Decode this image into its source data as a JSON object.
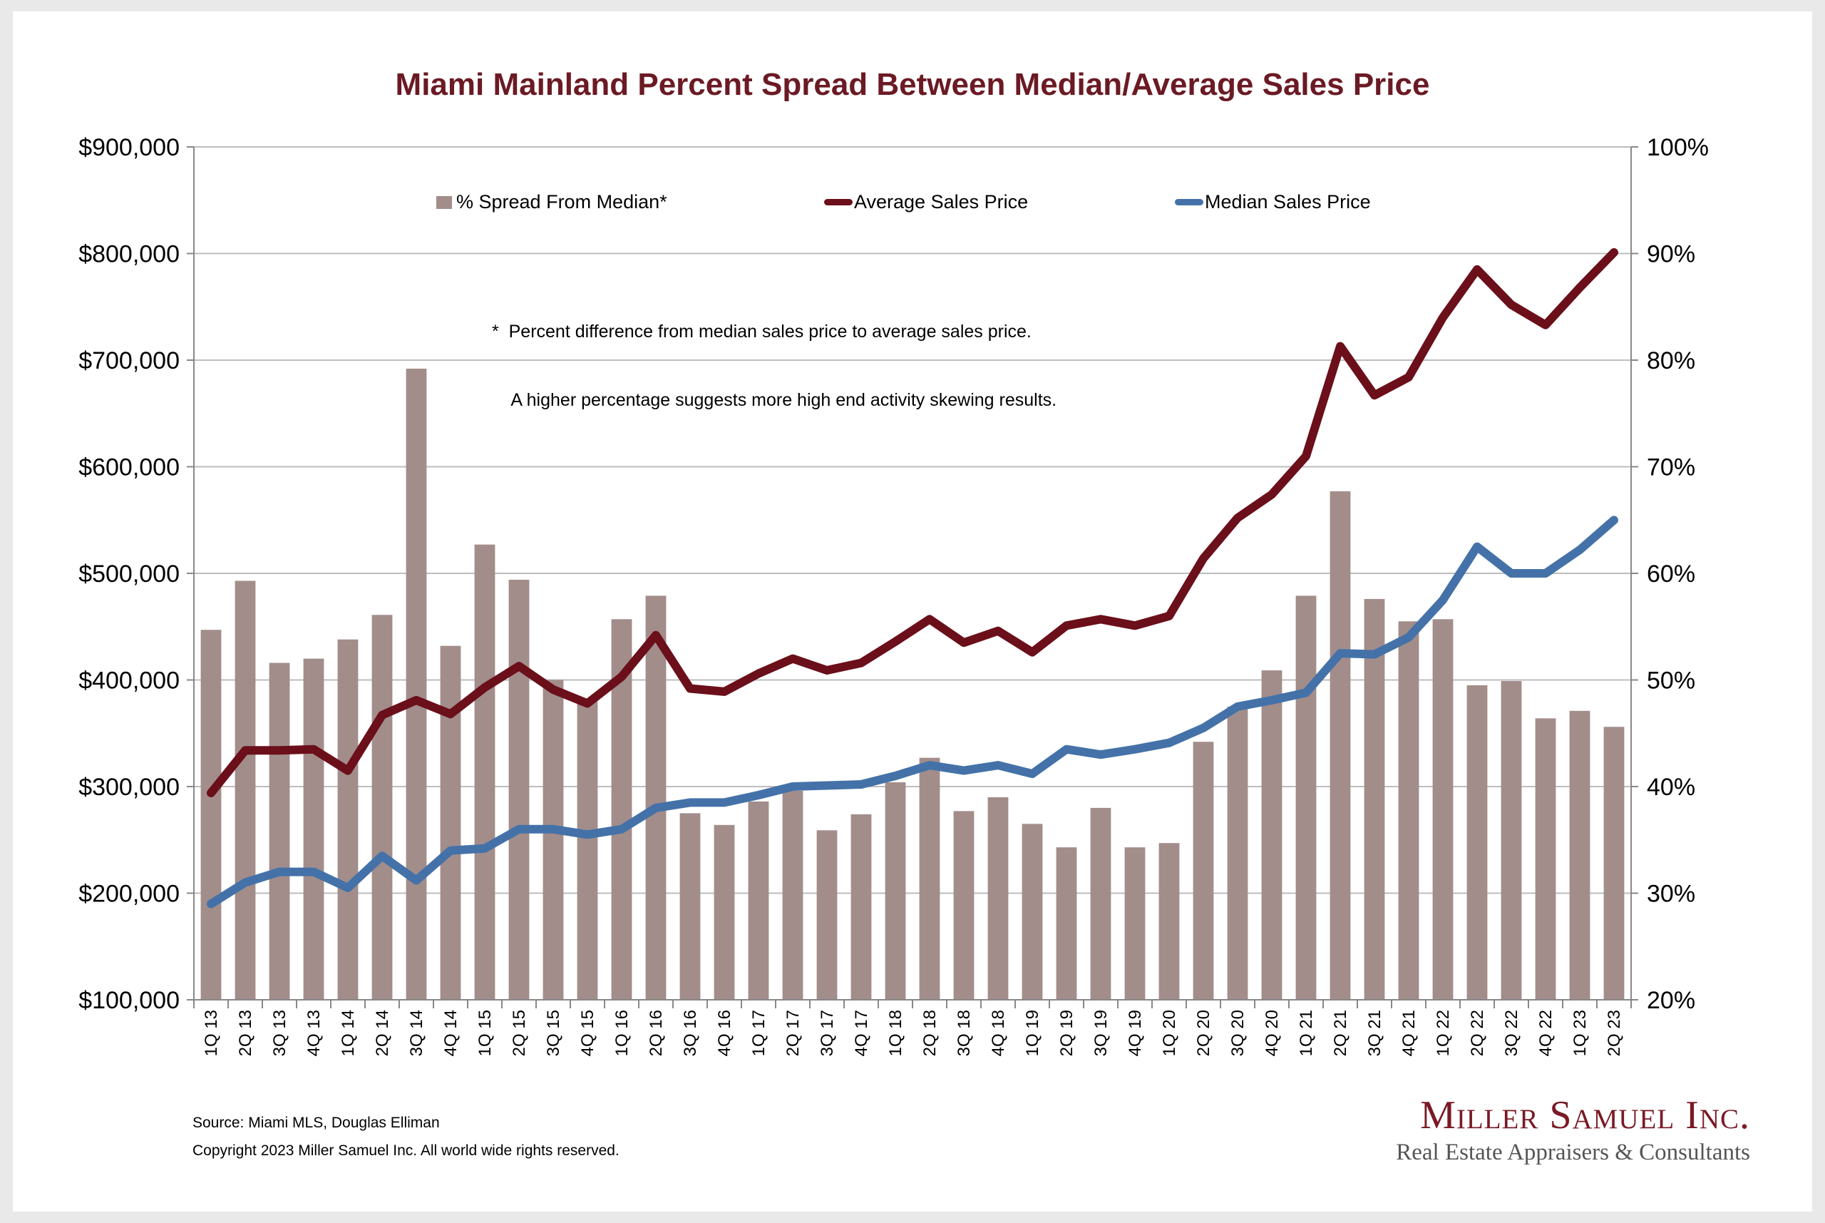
{
  "chart_data": {
    "type": "bar+line",
    "title": "Miami Mainland Percent Spread Between Median/Average Sales Price",
    "categories": [
      "1Q 13",
      "2Q 13",
      "3Q 13",
      "4Q 13",
      "1Q 14",
      "2Q 14",
      "3Q 14",
      "4Q 14",
      "1Q 15",
      "2Q 15",
      "3Q 15",
      "4Q 15",
      "1Q 16",
      "2Q 16",
      "3Q 16",
      "4Q 16",
      "1Q 17",
      "2Q 17",
      "3Q 17",
      "4Q 17",
      "1Q 18",
      "2Q 18",
      "3Q 18",
      "4Q 18",
      "1Q 19",
      "2Q 19",
      "3Q 19",
      "4Q 19",
      "1Q 20",
      "2Q 20",
      "3Q 20",
      "4Q 20",
      "1Q 21",
      "2Q 21",
      "3Q 21",
      "4Q 21",
      "1Q 22",
      "2Q 22",
      "3Q 22",
      "4Q 22",
      "1Q 23",
      "2Q 23"
    ],
    "series": [
      {
        "name": "% Spread From Median*",
        "kind": "bar",
        "axis": "right",
        "color": "#a28d8b",
        "values": [
          54.7,
          59.3,
          51.6,
          52.0,
          53.8,
          56.1,
          79.2,
          53.2,
          62.7,
          59.4,
          50.0,
          48.0,
          55.7,
          57.9,
          37.5,
          36.4,
          38.6,
          39.6,
          35.9,
          37.4,
          40.4,
          42.7,
          37.7,
          39.0,
          36.5,
          34.3,
          38.0,
          34.3,
          34.7,
          44.2,
          47.5,
          50.9,
          57.9,
          67.7,
          57.6,
          55.5,
          55.7,
          49.5,
          49.9,
          46.4,
          47.1,
          45.6
        ]
      },
      {
        "name": "Average Sales Price",
        "kind": "line",
        "axis": "left",
        "color": "#6b0f1a",
        "values": [
          294000,
          334000,
          334000,
          335000,
          315000,
          367000,
          381000,
          368000,
          393000,
          413000,
          391000,
          378000,
          403000,
          442000,
          392000,
          389000,
          406000,
          420000,
          409000,
          416000,
          436000,
          457000,
          435000,
          446000,
          426000,
          451000,
          457000,
          451000,
          460000,
          514000,
          552000,
          574000,
          610000,
          713000,
          667000,
          684000,
          740000,
          785000,
          752000,
          733000,
          768000,
          801000
        ]
      },
      {
        "name": "Median Sales Price",
        "kind": "line",
        "axis": "left",
        "color": "#4472a8",
        "values": [
          190000,
          210000,
          220000,
          220000,
          205000,
          235000,
          212000,
          240000,
          242000,
          260000,
          260000,
          255000,
          260000,
          280000,
          285000,
          285000,
          292000,
          300000,
          301000,
          302000,
          310000,
          320000,
          315000,
          320000,
          312000,
          335000,
          330000,
          335000,
          341000,
          355000,
          375000,
          381000,
          388000,
          425000,
          424000,
          440000,
          475000,
          525000,
          500000,
          500000,
          522000,
          550000
        ]
      }
    ],
    "y_left": {
      "range": [
        100000,
        900000
      ],
      "ticks": [
        "$100,000",
        "$200,000",
        "$300,000",
        "$400,000",
        "$500,000",
        "$600,000",
        "$700,000",
        "$800,000",
        "$900,000"
      ]
    },
    "y_right": {
      "range": [
        20,
        100
      ],
      "ticks": [
        "20%",
        "30%",
        "40%",
        "50%",
        "60%",
        "70%",
        "80%",
        "90%",
        "100%"
      ]
    },
    "grid": true,
    "legend_position": "top"
  },
  "footnote": {
    "line1": "*  Percent difference from median sales price to average sales price.",
    "line2": "    A higher percentage suggests more high end activity skewing results."
  },
  "source": "Source: Miami MLS, Douglas Elliman",
  "copyright": "Copyright 2023 Miller Samuel Inc.  All world wide rights reserved.",
  "brand": {
    "name": "Miller Samuel Inc.",
    "tagline": "Real Estate Appraisers & Consultants"
  }
}
